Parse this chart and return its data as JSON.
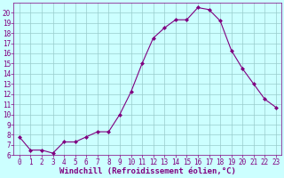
{
  "x": [
    0,
    1,
    2,
    3,
    4,
    5,
    6,
    7,
    8,
    9,
    10,
    11,
    12,
    13,
    14,
    15,
    16,
    17,
    18,
    19,
    20,
    21,
    22,
    23
  ],
  "y": [
    7.8,
    6.5,
    6.5,
    6.2,
    7.3,
    7.3,
    7.8,
    8.3,
    8.3,
    10.0,
    12.2,
    15.0,
    17.5,
    18.5,
    19.3,
    19.3,
    20.5,
    20.3,
    19.2,
    16.3,
    14.5,
    13.0,
    11.5,
    10.7
  ],
  "line_color": "#800080",
  "marker": "D",
  "marker_size": 2.0,
  "bg_color": "#ccffff",
  "grid_color": "#99cccc",
  "xlabel": "Windchill (Refroidissement éolien,°C)",
  "xlim": [
    -0.5,
    23.5
  ],
  "ylim": [
    6,
    21
  ],
  "yticks": [
    6,
    7,
    8,
    9,
    10,
    11,
    12,
    13,
    14,
    15,
    16,
    17,
    18,
    19,
    20
  ],
  "xticks": [
    0,
    1,
    2,
    3,
    4,
    5,
    6,
    7,
    8,
    9,
    10,
    11,
    12,
    13,
    14,
    15,
    16,
    17,
    18,
    19,
    20,
    21,
    22,
    23
  ],
  "tick_color": "#800080",
  "label_color": "#800080",
  "xlabel_fontsize": 6.5,
  "tick_fontsize": 5.5,
  "line_width": 0.8
}
